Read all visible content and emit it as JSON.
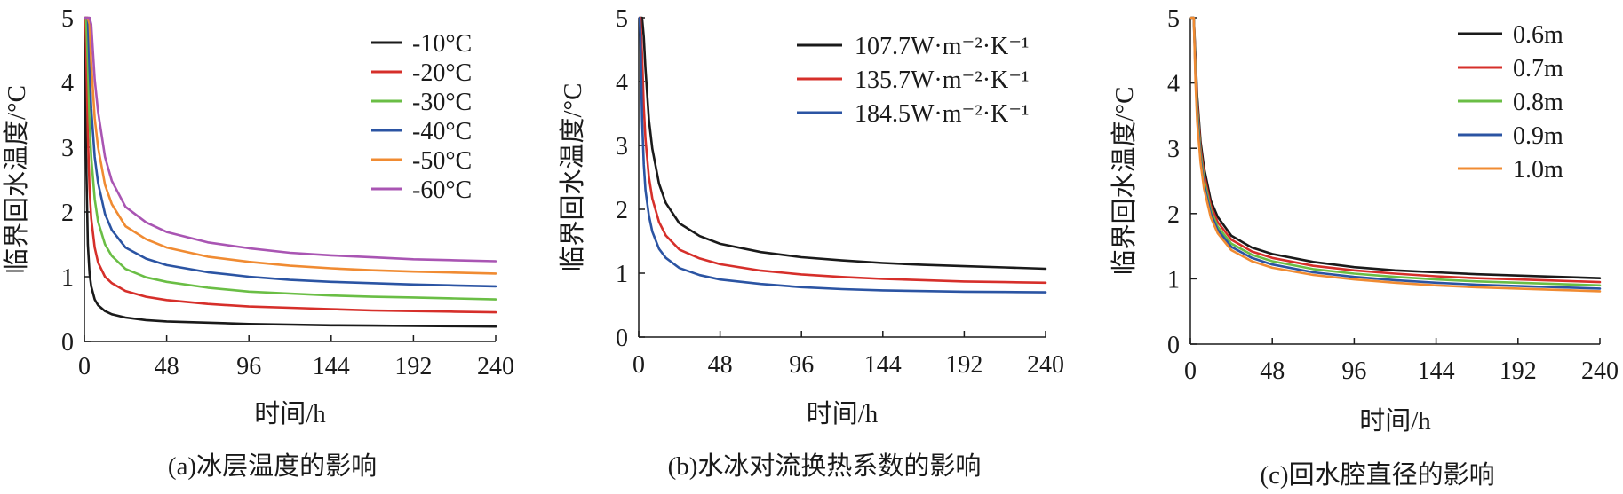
{
  "chart_data": [
    {
      "type": "line",
      "caption": "(a)冰层温度的影响",
      "xlabel": "时间/h",
      "ylabel": "临界回水温度/°C",
      "xlim": [
        0,
        240
      ],
      "ylim": [
        0,
        5
      ],
      "xticks": [
        "0",
        "48",
        "96",
        "144",
        "192",
        "240"
      ],
      "yticks": [
        "0",
        "1",
        "2",
        "3",
        "4",
        "5"
      ],
      "legend_position": "top-right",
      "x": [
        0.5,
        1,
        2,
        3,
        4,
        6,
        8,
        12,
        16,
        24,
        36,
        48,
        72,
        96,
        120,
        144,
        168,
        192,
        216,
        240
      ],
      "series": [
        {
          "name": "-10°C",
          "color": "#1a1a1a",
          "values": [
            5.0,
            2.9,
            1.5,
            1.05,
            0.85,
            0.65,
            0.56,
            0.47,
            0.42,
            0.37,
            0.33,
            0.31,
            0.29,
            0.27,
            0.26,
            0.25,
            0.245,
            0.24,
            0.235,
            0.23
          ]
        },
        {
          "name": "-20°C",
          "color": "#d62f2a",
          "values": [
            5.0,
            4.6,
            3.2,
            2.35,
            1.9,
            1.45,
            1.22,
            1.0,
            0.9,
            0.78,
            0.69,
            0.64,
            0.58,
            0.54,
            0.52,
            0.5,
            0.48,
            0.47,
            0.46,
            0.45
          ]
        },
        {
          "name": "-30°C",
          "color": "#6abe45",
          "values": [
            5.0,
            5.0,
            4.3,
            3.4,
            2.85,
            2.2,
            1.85,
            1.5,
            1.32,
            1.12,
            0.99,
            0.92,
            0.83,
            0.77,
            0.74,
            0.71,
            0.69,
            0.68,
            0.665,
            0.65
          ]
        },
        {
          "name": "-40°C",
          "color": "#2b54a3",
          "values": [
            5.0,
            5.0,
            5.0,
            4.2,
            3.6,
            2.85,
            2.45,
            1.97,
            1.72,
            1.45,
            1.28,
            1.18,
            1.07,
            1.0,
            0.95,
            0.92,
            0.9,
            0.88,
            0.865,
            0.85
          ]
        },
        {
          "name": "-50°C",
          "color": "#f08b32",
          "values": [
            5.0,
            5.0,
            5.0,
            4.9,
            4.3,
            3.45,
            3.0,
            2.42,
            2.12,
            1.78,
            1.58,
            1.45,
            1.31,
            1.23,
            1.17,
            1.13,
            1.1,
            1.08,
            1.065,
            1.05
          ]
        },
        {
          "name": "-60°C",
          "color": "#a955b3",
          "values": [
            5.0,
            5.0,
            5.0,
            5.0,
            4.9,
            4.05,
            3.55,
            2.85,
            2.48,
            2.08,
            1.84,
            1.69,
            1.53,
            1.44,
            1.37,
            1.33,
            1.3,
            1.27,
            1.255,
            1.24
          ]
        }
      ]
    },
    {
      "type": "line",
      "caption": "(b)水冰对流换热系数的影响",
      "xlabel": "时间/h",
      "ylabel": "临界回水温度/°C",
      "xlim": [
        0,
        240
      ],
      "ylim": [
        0,
        5
      ],
      "xticks": [
        "0",
        "48",
        "96",
        "144",
        "192",
        "240"
      ],
      "yticks": [
        "0",
        "1",
        "2",
        "3",
        "4",
        "5"
      ],
      "legend_position": "top-right",
      "x": [
        0.5,
        1,
        2,
        3,
        4,
        6,
        8,
        12,
        16,
        24,
        36,
        48,
        72,
        96,
        120,
        144,
        168,
        192,
        216,
        240
      ],
      "series": [
        {
          "name": "107.7W·m⁻²·K⁻¹",
          "color": "#1a1a1a",
          "values": [
            5.0,
            5.0,
            5.0,
            4.7,
            4.2,
            3.4,
            2.95,
            2.4,
            2.1,
            1.78,
            1.58,
            1.46,
            1.33,
            1.25,
            1.2,
            1.16,
            1.13,
            1.11,
            1.09,
            1.07
          ]
        },
        {
          "name": "135.7W·m⁻²·K⁻¹",
          "color": "#d62f2a",
          "values": [
            5.0,
            5.0,
            4.4,
            3.6,
            3.1,
            2.5,
            2.17,
            1.8,
            1.59,
            1.37,
            1.23,
            1.14,
            1.04,
            0.98,
            0.94,
            0.91,
            0.89,
            0.87,
            0.86,
            0.85
          ]
        },
        {
          "name": "184.5W·m⁻²·K⁻¹",
          "color": "#2b54a3",
          "values": [
            5.0,
            4.7,
            3.4,
            2.7,
            2.3,
            1.9,
            1.65,
            1.38,
            1.24,
            1.08,
            0.97,
            0.9,
            0.83,
            0.78,
            0.75,
            0.73,
            0.72,
            0.71,
            0.705,
            0.7
          ]
        }
      ]
    },
    {
      "type": "line",
      "caption": "(c)回水腔直径的影响",
      "xlabel": "时间/h",
      "ylabel": "临界回水温度/°C",
      "xlim": [
        0,
        240
      ],
      "ylim": [
        0,
        5
      ],
      "xticks": [
        "0",
        "48",
        "96",
        "144",
        "192",
        "240"
      ],
      "yticks": [
        "0",
        "1",
        "2",
        "3",
        "4",
        "5"
      ],
      "legend_position": "top-right",
      "x": [
        0.5,
        1,
        2,
        3,
        4,
        6,
        8,
        12,
        16,
        24,
        36,
        48,
        72,
        96,
        120,
        144,
        168,
        192,
        216,
        240
      ],
      "series": [
        {
          "name": "0.6m",
          "color": "#1a1a1a",
          "values": [
            5.0,
            5.0,
            5.0,
            4.4,
            3.8,
            3.1,
            2.7,
            2.2,
            1.95,
            1.66,
            1.48,
            1.38,
            1.26,
            1.18,
            1.13,
            1.1,
            1.07,
            1.05,
            1.03,
            1.01
          ]
        },
        {
          "name": "0.7m",
          "color": "#d62f2a",
          "values": [
            5.0,
            5.0,
            5.0,
            4.3,
            3.7,
            3.0,
            2.6,
            2.12,
            1.87,
            1.6,
            1.42,
            1.32,
            1.2,
            1.13,
            1.08,
            1.04,
            1.01,
            0.99,
            0.97,
            0.95
          ]
        },
        {
          "name": "0.8m",
          "color": "#6abe45",
          "values": [
            5.0,
            5.0,
            5.0,
            4.2,
            3.6,
            2.92,
            2.52,
            2.05,
            1.8,
            1.54,
            1.37,
            1.27,
            1.15,
            1.08,
            1.03,
            0.99,
            0.96,
            0.94,
            0.92,
            0.9
          ]
        },
        {
          "name": "0.9m",
          "color": "#2b54a3",
          "values": [
            5.0,
            5.0,
            5.0,
            4.1,
            3.5,
            2.85,
            2.45,
            2.0,
            1.75,
            1.49,
            1.32,
            1.22,
            1.1,
            1.03,
            0.98,
            0.94,
            0.91,
            0.89,
            0.87,
            0.85
          ]
        },
        {
          "name": "1.0m",
          "color": "#f08b32",
          "values": [
            5.0,
            5.0,
            5.0,
            4.0,
            3.4,
            2.78,
            2.38,
            1.94,
            1.7,
            1.44,
            1.27,
            1.17,
            1.06,
            0.99,
            0.94,
            0.9,
            0.87,
            0.85,
            0.83,
            0.81
          ]
        }
      ]
    }
  ]
}
